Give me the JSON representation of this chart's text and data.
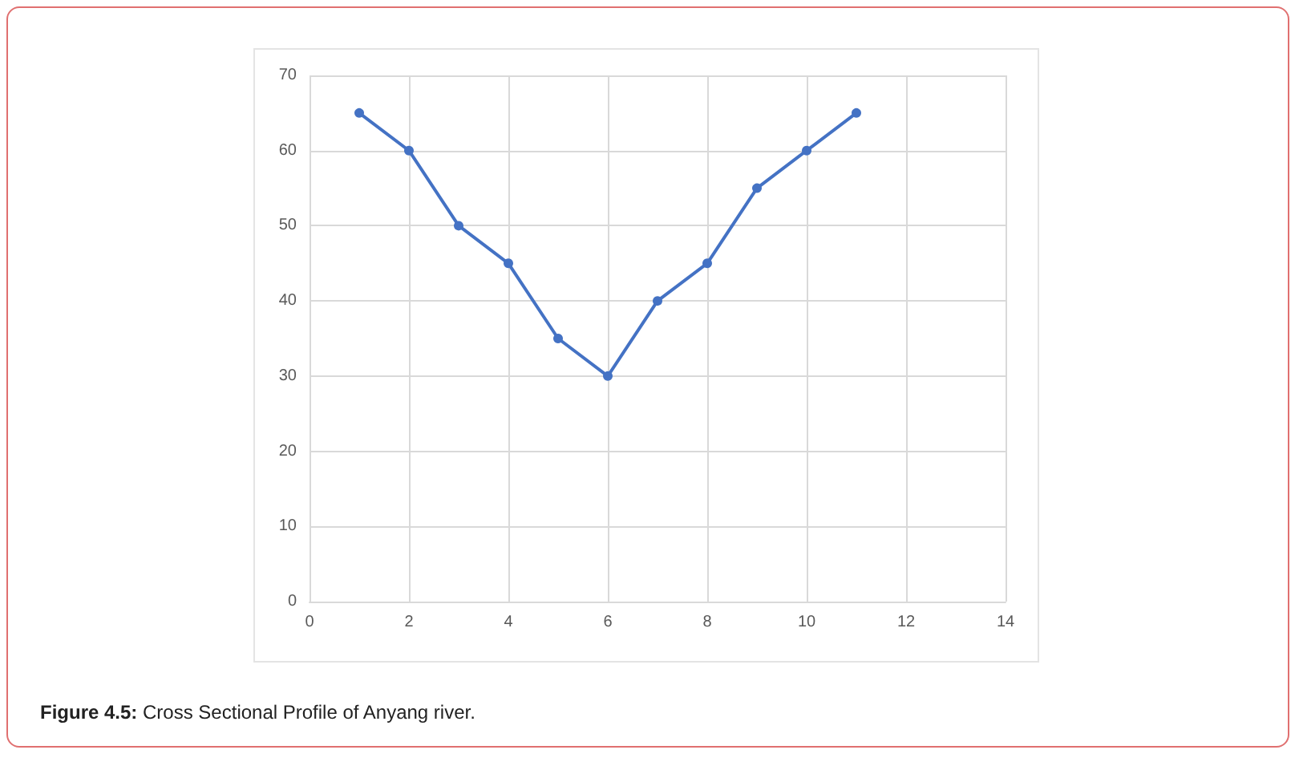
{
  "chart_data": {
    "type": "line",
    "x": [
      1,
      2,
      3,
      4,
      5,
      6,
      7,
      8,
      9,
      10,
      11
    ],
    "series": [
      {
        "color": "#4472c4",
        "values": [
          65,
          60,
          50,
          45,
          35,
          30,
          40,
          45,
          55,
          60,
          65
        ]
      }
    ],
    "xlim": [
      0,
      14
    ],
    "xticks": [
      0,
      2,
      4,
      6,
      8,
      10,
      12,
      14
    ],
    "ylim": [
      0,
      70
    ],
    "yticks": [
      0,
      10,
      20,
      30,
      40,
      50,
      60,
      70
    ],
    "grid": true,
    "marker": "circle",
    "line_style": "solid",
    "annotations": [
      "Figure 4.5: Cross Sectional Profile of Anyang river."
    ]
  }
}
